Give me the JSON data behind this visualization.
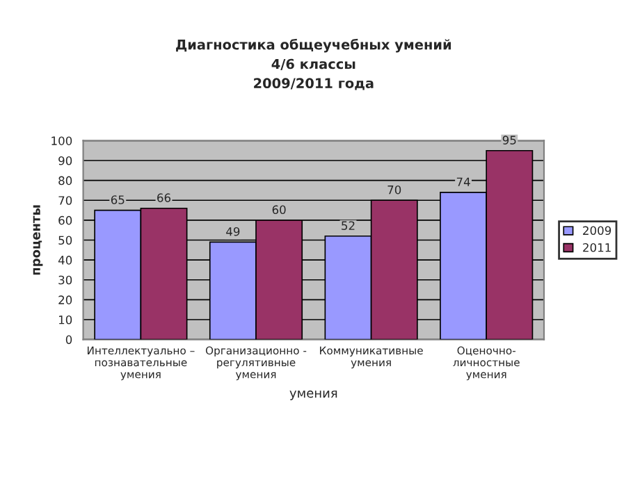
{
  "chart_data": {
    "type": "bar",
    "title": "Диагностика общеучебных умений\n4/6 классы\n2009/2011 года",
    "categories": [
      "Интеллектуально –\nпознавательные\nумения",
      "Организационно -\nрегулятивные\nумения",
      "Коммуникативные\nумения",
      "Оценочно-\nличностные\nумения"
    ],
    "series": [
      {
        "name": "2009",
        "color": "#9999ff",
        "values": [
          65,
          49,
          52,
          74
        ]
      },
      {
        "name": "2011",
        "color": "#993366",
        "values": [
          66,
          60,
          70,
          95
        ]
      }
    ],
    "xlabel": "умения",
    "ylabel": "проценты",
    "ylim": [
      0,
      100
    ],
    "yticks": [
      0,
      10,
      20,
      30,
      40,
      50,
      60,
      70,
      80,
      90,
      100
    ],
    "grid": "y",
    "legend": "right",
    "data_labels": true
  }
}
